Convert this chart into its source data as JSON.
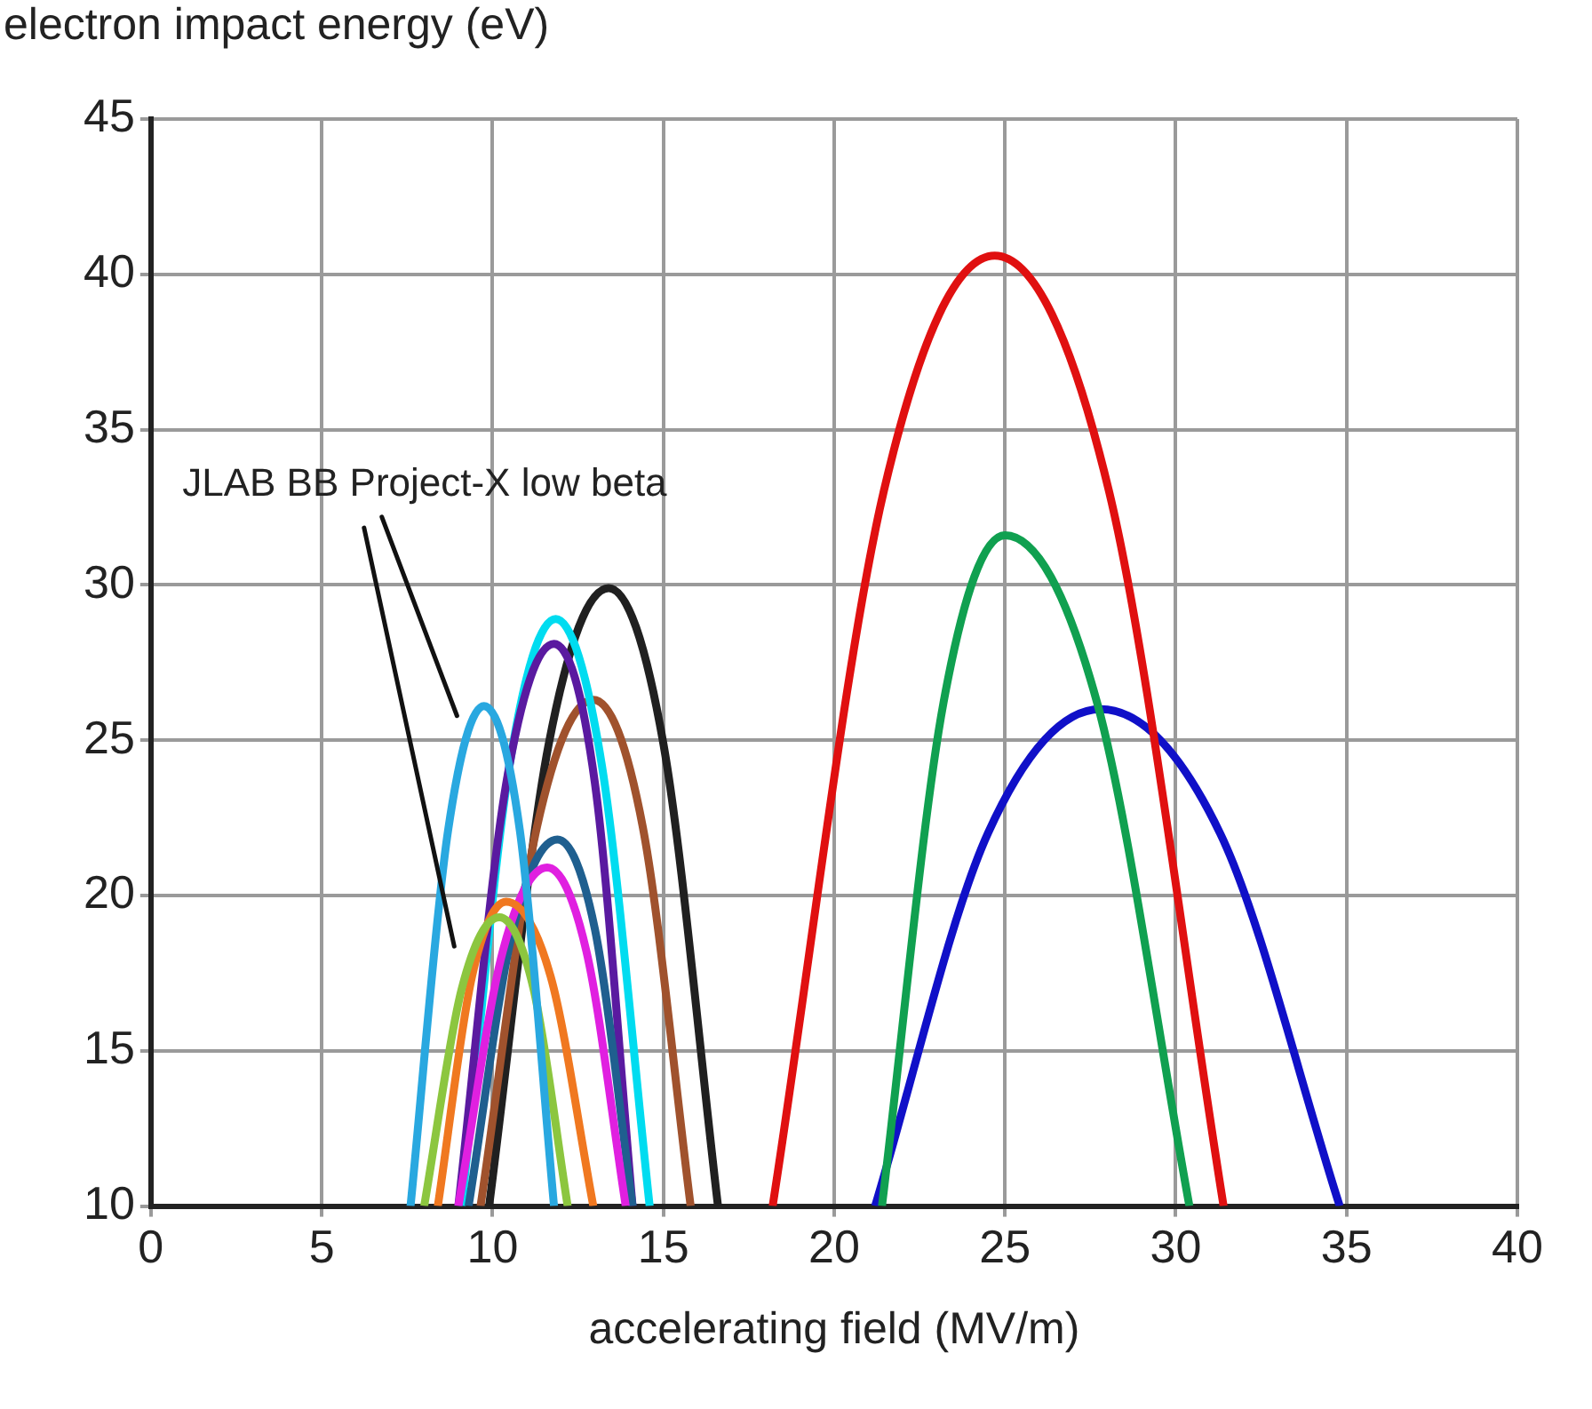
{
  "chart_data": {
    "type": "line",
    "xlabel": "accelerating field (MV/m)",
    "ylabel": "electron impact energy (eV)",
    "annotations": [
      "JLAB BB Project-X low beta"
    ],
    "xlim": [
      0,
      40
    ],
    "xticks": [
      0,
      5,
      10,
      15,
      20,
      25,
      30,
      35,
      40
    ],
    "ylim": [
      10,
      45
    ],
    "yticks": [
      10,
      15,
      20,
      25,
      30,
      35,
      40,
      45
    ],
    "grid": true,
    "legend": false,
    "marker": "none",
    "line_style": "solid",
    "series": [
      {
        "color": "#29a8e0",
        "x": [
          7.6,
          8.7,
          9.75,
          10.8,
          11.8
        ],
        "values": [
          10,
          22.1,
          26.1,
          22.1,
          10
        ]
      },
      {
        "color": "#8cc63f",
        "x": [
          8.0,
          9.1,
          10.2,
          11.2,
          12.2
        ],
        "values": [
          10,
          17.0,
          19.3,
          17.0,
          10
        ]
      },
      {
        "color": "#f07820",
        "x": [
          8.4,
          9.4,
          10.4,
          11.7,
          12.95
        ],
        "values": [
          10,
          17.4,
          19.8,
          17.4,
          10
        ]
      },
      {
        "color": "#e020e0",
        "x": [
          9.0,
          10.3,
          11.6,
          12.75,
          13.9
        ],
        "values": [
          10,
          18.2,
          20.9,
          18.2,
          10
        ]
      },
      {
        "color": "#1f5f8f",
        "x": [
          9.3,
          10.6,
          11.9,
          13.0,
          14.1
        ],
        "values": [
          10,
          18.9,
          21.8,
          18.9,
          10
        ]
      },
      {
        "color": "#5a1aa0",
        "x": [
          9.0,
          10.4,
          11.8,
          13.0,
          14.1
        ],
        "values": [
          10,
          23.6,
          28.1,
          23.6,
          10
        ]
      },
      {
        "color": "#00dcf0",
        "x": [
          9.1,
          10.5,
          11.85,
          13.2,
          14.6
        ],
        "values": [
          10,
          24.2,
          28.9,
          24.2,
          10
        ]
      },
      {
        "color": "#a0522d",
        "x": [
          9.65,
          11.3,
          12.95,
          14.4,
          15.8
        ],
        "values": [
          10,
          22.2,
          26.3,
          22.2,
          10
        ]
      },
      {
        "color": "#202020",
        "x": [
          9.9,
          11.65,
          13.4,
          15.0,
          16.6
        ],
        "values": [
          10,
          24.9,
          29.9,
          24.9,
          10
        ]
      },
      {
        "color": "#e01010",
        "x": [
          18.2,
          21.45,
          24.7,
          28.05,
          31.4
        ],
        "values": [
          10,
          33.0,
          40.6,
          33.0,
          10
        ]
      },
      {
        "color": "#10a050",
        "x": [
          21.4,
          23.2,
          25.0,
          27.7,
          30.4
        ],
        "values": [
          10,
          26.2,
          31.6,
          26.2,
          10
        ]
      },
      {
        "color": "#1010c8",
        "x": [
          21.2,
          24.5,
          27.8,
          31.3,
          34.8
        ],
        "values": [
          10,
          22.0,
          26.0,
          22.0,
          10
        ]
      }
    ]
  }
}
